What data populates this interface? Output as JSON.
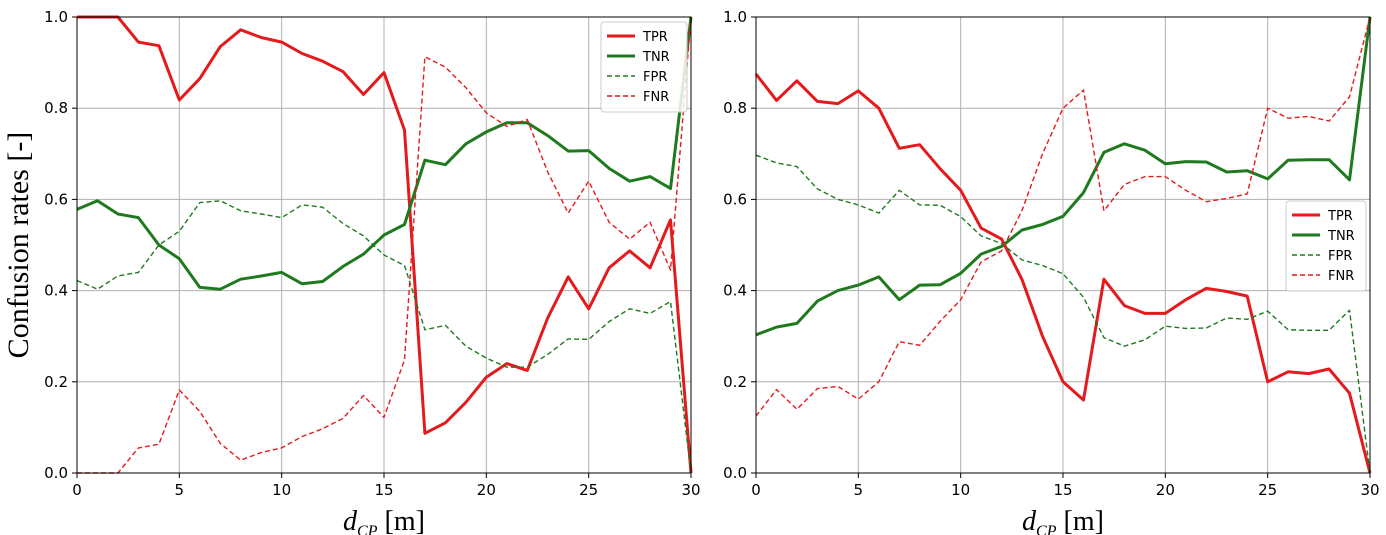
{
  "chart_data": [
    {
      "type": "line",
      "ylabel": "Confusion rates [-]",
      "xlabel": {
        "var": "d",
        "sub": "CP",
        "unit": "[m]"
      },
      "xlim": [
        0,
        30
      ],
      "ylim": [
        0,
        1
      ],
      "xticks": [
        "0",
        "5",
        "10",
        "15",
        "20",
        "25",
        "30"
      ],
      "yticks": [
        "0.0",
        "0.2",
        "0.4",
        "0.6",
        "0.8",
        "1.0"
      ],
      "grid": true,
      "legend_position": "top-right",
      "x": [
        0,
        1,
        2,
        3,
        4,
        5,
        6,
        7,
        8,
        9,
        10,
        11,
        12,
        13,
        14,
        15,
        16,
        17,
        18,
        19,
        20,
        21,
        22,
        23,
        24,
        25,
        26,
        27,
        28,
        29,
        30
      ],
      "series": [
        {
          "name": "TPR",
          "color": "#e41a1c",
          "style": "solid-thick",
          "values": [
            1.0,
            1.0,
            1.0,
            0.945,
            0.937,
            0.818,
            0.865,
            0.935,
            0.972,
            0.955,
            0.945,
            0.92,
            0.903,
            0.88,
            0.83,
            0.878,
            0.752,
            0.087,
            0.11,
            0.155,
            0.21,
            0.24,
            0.225,
            0.34,
            0.43,
            0.36,
            0.45,
            0.487,
            0.45,
            0.555,
            0.0
          ]
        },
        {
          "name": "TNR",
          "color": "#1f7a1f",
          "style": "solid-thick",
          "values": [
            0.578,
            0.597,
            0.568,
            0.56,
            0.5,
            0.47,
            0.407,
            0.403,
            0.425,
            0.432,
            0.44,
            0.415,
            0.42,
            0.453,
            0.48,
            0.522,
            0.545,
            0.686,
            0.676,
            0.722,
            0.748,
            0.768,
            0.768,
            0.74,
            0.706,
            0.707,
            0.668,
            0.64,
            0.65,
            0.624,
            1.0
          ]
        },
        {
          "name": "FPR",
          "color": "#1f7a1f",
          "style": "dashed-thin",
          "values": [
            0.422,
            0.403,
            0.432,
            0.44,
            0.5,
            0.53,
            0.593,
            0.597,
            0.575,
            0.568,
            0.56,
            0.588,
            0.583,
            0.547,
            0.52,
            0.478,
            0.455,
            0.314,
            0.324,
            0.278,
            0.252,
            0.232,
            0.232,
            0.26,
            0.294,
            0.293,
            0.332,
            0.36,
            0.35,
            0.376,
            0.0
          ]
        },
        {
          "name": "FNR",
          "color": "#e41a1c",
          "style": "dashed-thin",
          "values": [
            0.0,
            0.0,
            0.0,
            0.055,
            0.063,
            0.182,
            0.135,
            0.065,
            0.028,
            0.045,
            0.055,
            0.08,
            0.097,
            0.12,
            0.17,
            0.122,
            0.248,
            0.913,
            0.89,
            0.845,
            0.79,
            0.76,
            0.775,
            0.66,
            0.57,
            0.64,
            0.55,
            0.513,
            0.55,
            0.445,
            1.0
          ]
        }
      ]
    },
    {
      "type": "line",
      "ylabel": "",
      "xlabel": {
        "var": "d",
        "sub": "CP",
        "unit": "[m]"
      },
      "xlim": [
        0,
        30
      ],
      "ylim": [
        0,
        1
      ],
      "xticks": [
        "0",
        "5",
        "10",
        "15",
        "20",
        "25",
        "30"
      ],
      "yticks": [
        "0.0",
        "0.2",
        "0.4",
        "0.6",
        "0.8",
        "1.0"
      ],
      "grid": true,
      "legend_position": "center-right",
      "x": [
        0,
        1,
        2,
        3,
        4,
        5,
        6,
        7,
        8,
        9,
        10,
        11,
        12,
        13,
        14,
        15,
        16,
        17,
        18,
        19,
        20,
        21,
        22,
        23,
        24,
        25,
        26,
        27,
        28,
        29,
        30
      ],
      "series": [
        {
          "name": "TPR",
          "color": "#e41a1c",
          "style": "solid-thick",
          "values": [
            0.875,
            0.817,
            0.86,
            0.815,
            0.81,
            0.838,
            0.8,
            0.712,
            0.72,
            0.667,
            0.62,
            0.537,
            0.513,
            0.424,
            0.3,
            0.2,
            0.16,
            0.425,
            0.367,
            0.35,
            0.35,
            0.38,
            0.405,
            0.398,
            0.388,
            0.2,
            0.222,
            0.218,
            0.228,
            0.175,
            0.0
          ]
        },
        {
          "name": "TNR",
          "color": "#1f7a1f",
          "style": "solid-thick",
          "values": [
            0.303,
            0.32,
            0.328,
            0.377,
            0.4,
            0.412,
            0.43,
            0.38,
            0.412,
            0.413,
            0.438,
            0.48,
            0.497,
            0.533,
            0.545,
            0.563,
            0.615,
            0.703,
            0.722,
            0.708,
            0.678,
            0.683,
            0.682,
            0.66,
            0.663,
            0.645,
            0.686,
            0.687,
            0.687,
            0.643,
            1.0
          ]
        },
        {
          "name": "FPR",
          "color": "#1f7a1f",
          "style": "dashed-thin",
          "values": [
            0.697,
            0.68,
            0.672,
            0.623,
            0.6,
            0.588,
            0.57,
            0.62,
            0.588,
            0.587,
            0.562,
            0.52,
            0.503,
            0.467,
            0.455,
            0.437,
            0.385,
            0.297,
            0.278,
            0.292,
            0.322,
            0.317,
            0.318,
            0.34,
            0.337,
            0.355,
            0.314,
            0.313,
            0.313,
            0.357,
            0.0
          ]
        },
        {
          "name": "FNR",
          "color": "#e41a1c",
          "style": "dashed-thin",
          "values": [
            0.125,
            0.183,
            0.14,
            0.185,
            0.19,
            0.162,
            0.2,
            0.288,
            0.28,
            0.333,
            0.38,
            0.463,
            0.487,
            0.576,
            0.7,
            0.8,
            0.84,
            0.575,
            0.633,
            0.65,
            0.65,
            0.62,
            0.595,
            0.602,
            0.612,
            0.8,
            0.778,
            0.782,
            0.772,
            0.825,
            1.0
          ]
        }
      ]
    }
  ]
}
